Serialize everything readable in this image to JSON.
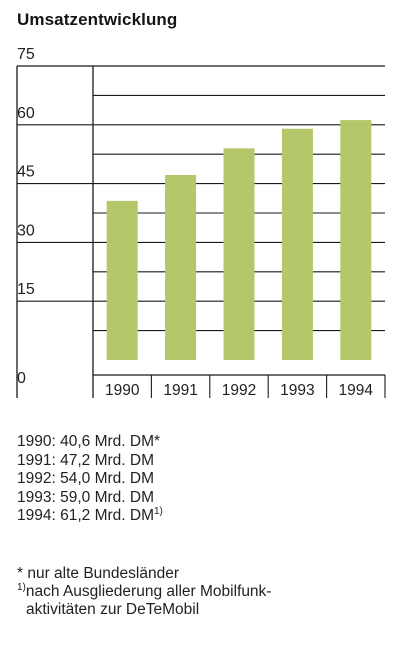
{
  "title": "Umsatzentwicklung",
  "chart_data": {
    "type": "bar",
    "categories": [
      "1990",
      "1991",
      "1992",
      "1993",
      "1994"
    ],
    "values": [
      40.6,
      47.2,
      54.0,
      59.0,
      61.2
    ],
    "yticks": [
      "0",
      "15",
      "30",
      "45",
      "60",
      "75"
    ],
    "ylim": [
      0,
      75
    ],
    "grid": true,
    "bar_color": "#b4c76a",
    "line_color": "#1a1a1a"
  },
  "values_list": [
    {
      "text": "1990: 40,6 Mrd. DM",
      "mark": "*"
    },
    {
      "text": "1991: 47,2 Mrd. DM",
      "mark": ""
    },
    {
      "text": "1992: 54,0 Mrd. DM",
      "mark": ""
    },
    {
      "text": "1993: 59,0 Mrd. DM",
      "mark": ""
    },
    {
      "text": "1994: 61,2 Mrd. DM",
      "mark": "1)"
    }
  ],
  "footnotes": {
    "note1": "* nur alte Bundesländer",
    "note2_mark": "1)",
    "note2_line1": "nach Ausgliederung aller Mobilfunk-",
    "note2_line2": "aktivitäten zur DeTeMobil"
  }
}
